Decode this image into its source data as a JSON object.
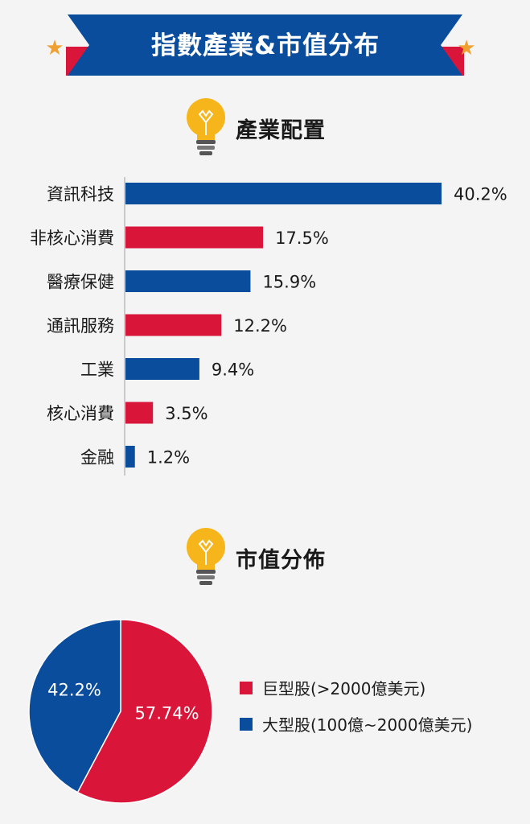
{
  "banner": {
    "title": "指數產業&市值分布"
  },
  "sections": {
    "industry": {
      "title": "產業配置"
    },
    "market_cap": {
      "title": "市值分佈"
    }
  },
  "colors": {
    "blue": "#0a4d9c",
    "red": "#d9163a",
    "star": "#f0a030",
    "bulb": "#f6b61b"
  },
  "chart_data": [
    {
      "type": "bar",
      "orientation": "horizontal",
      "title": "產業配置",
      "categories": [
        "資訊科技",
        "非核心消費",
        "醫療保健",
        "通訊服務",
        "工業",
        "核心消費",
        "金融"
      ],
      "values": [
        40.2,
        17.5,
        15.9,
        12.2,
        9.4,
        3.5,
        1.2
      ],
      "labels": [
        "40.2%",
        "17.5%",
        "15.9%",
        "12.2%",
        "9.4%",
        "3.5%",
        "1.2%"
      ],
      "bar_colors": [
        "#0a4d9c",
        "#d9163a",
        "#0a4d9c",
        "#d9163a",
        "#0a4d9c",
        "#d9163a",
        "#0a4d9c"
      ],
      "xlim": [
        0,
        40.2
      ],
      "grid": false
    },
    {
      "type": "pie",
      "title": "市值分佈",
      "legend": "right",
      "slices": [
        {
          "name": "巨型股(>2000億美元)",
          "value": 57.74,
          "label": "57.74%",
          "color": "#d9163a"
        },
        {
          "name": "大型股(100億~2000億美元)",
          "value": 42.2,
          "label": "42.2%",
          "color": "#0a4d9c"
        }
      ]
    }
  ]
}
